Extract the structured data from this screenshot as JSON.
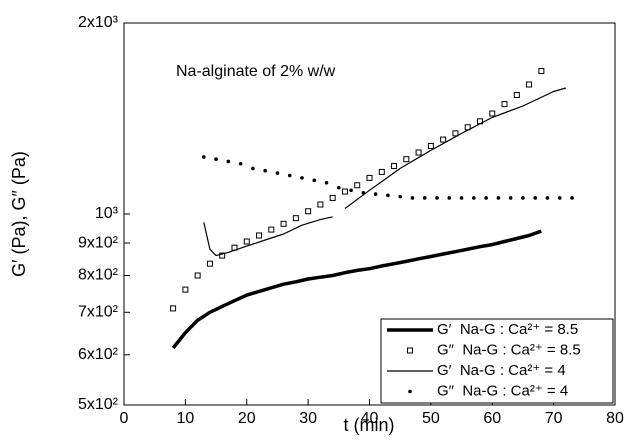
{
  "chart_data": {
    "type": "line",
    "annotation": "Na-alginate of 2% w/w",
    "x_label": "t (min)",
    "y_label": "G′ (Pa), G″ (Pa)",
    "xlim": [
      0,
      80
    ],
    "xticks": [
      0,
      10,
      20,
      30,
      40,
      50,
      60,
      70,
      80
    ],
    "ylim": [
      500,
      2000
    ],
    "y_scale": "log",
    "yticks": [
      {
        "value": 500,
        "label": "5x10²"
      },
      {
        "value": 600,
        "label": "6x10²"
      },
      {
        "value": 700,
        "label": "7x10²"
      },
      {
        "value": 800,
        "label": "8x10²"
      },
      {
        "value": 900,
        "label": "9x10²"
      },
      {
        "value": 1000,
        "label": "10³"
      },
      {
        "value": 2000,
        "label": "2x10³"
      }
    ],
    "legend_position": "lower right",
    "series": [
      {
        "name": "G′  Na-G : Ca²⁺ = 8.5",
        "color": "#000000",
        "marker": "none",
        "line_width": 3.5,
        "x": [
          8,
          10,
          12,
          14,
          16,
          18,
          20,
          22,
          24,
          26,
          28,
          30,
          32,
          34,
          36,
          38,
          40,
          42,
          44,
          46,
          48,
          50,
          52,
          54,
          56,
          58,
          60,
          62,
          64,
          66,
          68
        ],
        "values": [
          615,
          650,
          680,
          700,
          715,
          730,
          745,
          755,
          765,
          775,
          782,
          790,
          795,
          800,
          808,
          815,
          820,
          828,
          835,
          842,
          850,
          857,
          865,
          872,
          880,
          888,
          895,
          905,
          915,
          925,
          940
        ]
      },
      {
        "name": "G″  Na-G : Ca²⁺ = 8.5",
        "color": "#000000",
        "marker": "square",
        "line_width": 0,
        "x": [
          8,
          10,
          12,
          14,
          16,
          18,
          20,
          22,
          24,
          26,
          28,
          30,
          32,
          34,
          36,
          38,
          40,
          42,
          44,
          46,
          48,
          50,
          52,
          54,
          56,
          58,
          60,
          62,
          64,
          66,
          68
        ],
        "values": [
          710,
          760,
          800,
          835,
          860,
          885,
          905,
          925,
          945,
          965,
          985,
          1010,
          1035,
          1060,
          1085,
          1110,
          1140,
          1165,
          1190,
          1220,
          1250,
          1280,
          1310,
          1340,
          1370,
          1400,
          1440,
          1490,
          1540,
          1600,
          1680
        ]
      },
      {
        "name": "G′  Na-G : Ca²⁺ = 4",
        "color": "#000000",
        "marker": "none",
        "line_width": 1.2,
        "x": [
          13,
          14,
          15,
          17,
          20,
          23,
          26,
          29,
          32,
          34,
          35,
          36,
          40,
          45,
          50,
          55,
          60,
          65,
          70,
          72
        ],
        "values": [
          970,
          880,
          860,
          870,
          890,
          910,
          930,
          960,
          980,
          990,
          null,
          1020,
          1090,
          1180,
          1260,
          1340,
          1420,
          1480,
          1560,
          1580
        ]
      },
      {
        "name": "G″  Na-G : Ca²⁺ = 4",
        "color": "#000000",
        "marker": "dot",
        "line_width": 0,
        "x": [
          13,
          15,
          17,
          19,
          21,
          23,
          25,
          27,
          29,
          31,
          33,
          35,
          37,
          39,
          41,
          43,
          45,
          47,
          49,
          51,
          53,
          55,
          57,
          59,
          61,
          63,
          65,
          67,
          69,
          71,
          73
        ],
        "values": [
          1230,
          1220,
          1210,
          1200,
          1180,
          1170,
          1160,
          1150,
          1140,
          1130,
          1120,
          1100,
          1090,
          1080,
          1075,
          1070,
          1065,
          1060,
          1060,
          1060,
          1060,
          1060,
          1060,
          1060,
          1060,
          1060,
          1060,
          1060,
          1060,
          1060,
          1060
        ]
      }
    ]
  }
}
